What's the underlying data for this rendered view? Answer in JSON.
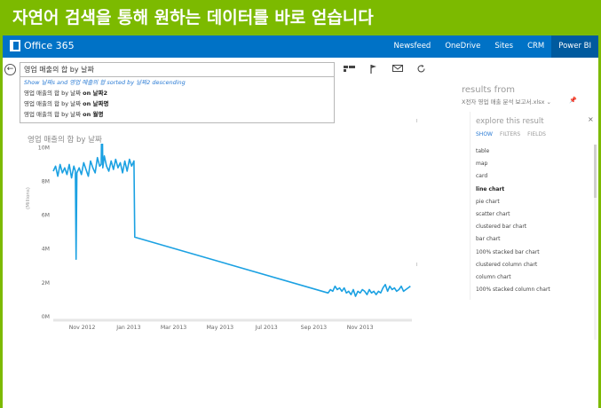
{
  "headline": "자연어 검색을 통해 원하는 데이터를 바로 얻습니다",
  "o365": {
    "brand": "Office 365",
    "nav": [
      "Newsfeed",
      "OneDrive",
      "Sites",
      "CRM",
      "Power BI"
    ],
    "active_nav": "Power BI"
  },
  "qa": {
    "query": "영업 매출의 합 by 날짜",
    "restatement": "Show 날짜s and 영업 매출의 합 sorted by 날짜2 descending",
    "suggestions": [
      {
        "prefix": "영업 매출의 합 by 날짜 ",
        "bold": "on 날짜2"
      },
      {
        "prefix": "영업 매출의 합 by 날짜 ",
        "bold": "on 날짜명"
      },
      {
        "prefix": "영업 매출의 합 by 날짜 ",
        "bold": "on 월명"
      }
    ]
  },
  "toolbar_icons": [
    "visual-type-icon",
    "flag-icon",
    "mail-icon",
    "refresh-icon"
  ],
  "result_panel": {
    "results_from_label": "results from",
    "file_name": "X전자 영업 매출 분석 보고서.xlsx",
    "explore": {
      "title": "explore this result",
      "close_glyph": "×",
      "tabs": [
        "SHOW",
        "FILTERS",
        "FIELDS"
      ],
      "active_tab": "SHOW",
      "visualizations": [
        "table",
        "map",
        "card",
        "line chart",
        "pie chart",
        "scatter chart",
        "clustered bar chart",
        "bar chart",
        "100% stacked bar chart",
        "clustered column chart",
        "column chart",
        "100% stacked column chart"
      ],
      "selected": "line chart"
    }
  },
  "chart_data": {
    "type": "line",
    "title": "영업 매출의 합 by 날짜",
    "ylabel": "(Millions)",
    "xlabel": "",
    "ylim": [
      0,
      14
    ],
    "yticks": [
      "0M",
      "2M",
      "4M",
      "6M",
      "8M",
      "10M",
      "12M",
      "14M"
    ],
    "xticks": [
      "Nov 2012",
      "Jan 2013",
      "Mar 2013",
      "May 2013",
      "Jul 2013",
      "Sep 2013",
      "Nov 2013"
    ],
    "xlim": [
      "2012-09-24",
      "2014-01-08"
    ],
    "grid": false,
    "color": "#1ba1e2",
    "series": [
      {
        "x": [
          "2012-09-24",
          "2012-09-27",
          "2012-09-30",
          "2012-10-03",
          "2012-10-06",
          "2012-10-09",
          "2012-10-12",
          "2012-10-15",
          "2012-10-18",
          "2012-10-21",
          "2012-10-23",
          "2012-10-24",
          "2012-10-25",
          "2012-10-28",
          "2012-10-31",
          "2012-11-03",
          "2012-11-06",
          "2012-11-09",
          "2012-11-12",
          "2012-11-15",
          "2012-11-18",
          "2012-11-21",
          "2012-11-24",
          "2012-11-26",
          "2012-11-27",
          "2012-11-28",
          "2012-11-30",
          "2012-12-03",
          "2012-12-06",
          "2012-12-09",
          "2012-12-12",
          "2012-12-15",
          "2012-12-18",
          "2012-12-21",
          "2012-12-24",
          "2012-12-27",
          "2012-12-30",
          "2013-01-02",
          "2013-01-05",
          "2013-01-08",
          "2013-01-09",
          "2013-09-20",
          "2013-09-23",
          "2013-09-26",
          "2013-09-29",
          "2013-10-02",
          "2013-10-05",
          "2013-10-08",
          "2013-10-11",
          "2013-10-14",
          "2013-10-17",
          "2013-10-20",
          "2013-10-23",
          "2013-10-26",
          "2013-10-29",
          "2013-11-01",
          "2013-11-04",
          "2013-11-07",
          "2013-11-10",
          "2013-11-13",
          "2013-11-16",
          "2013-11-19",
          "2013-11-22",
          "2013-11-25",
          "2013-11-28",
          "2013-12-01",
          "2013-12-04",
          "2013-12-07",
          "2013-12-10",
          "2013-12-13",
          "2013-12-16",
          "2013-12-19",
          "2013-12-22",
          "2013-12-25",
          "2013-12-28",
          "2013-12-31",
          "2014-01-03",
          "2014-01-06"
        ],
        "y": [
          8.6,
          8.9,
          8.3,
          9.0,
          8.5,
          8.8,
          8.4,
          9.0,
          8.2,
          8.9,
          8.6,
          3.4,
          8.5,
          8.8,
          8.4,
          9.1,
          8.7,
          8.3,
          9.2,
          8.8,
          8.5,
          9.4,
          8.9,
          9.0,
          12.8,
          8.8,
          9.5,
          8.9,
          8.6,
          9.2,
          8.7,
          9.3,
          8.8,
          9.1,
          8.5,
          9.2,
          8.6,
          9.3,
          8.9,
          9.2,
          4.7,
          1.4,
          1.6,
          1.5,
          1.8,
          1.6,
          1.7,
          1.5,
          1.7,
          1.4,
          1.5,
          1.3,
          1.6,
          1.2,
          1.5,
          1.4,
          1.6,
          1.5,
          1.3,
          1.6,
          1.4,
          1.5,
          1.3,
          1.5,
          1.4,
          1.7,
          1.9,
          1.5,
          1.8,
          1.6,
          1.7,
          1.5,
          1.6,
          1.8,
          1.5,
          1.6,
          1.7,
          1.8
        ]
      }
    ]
  }
}
